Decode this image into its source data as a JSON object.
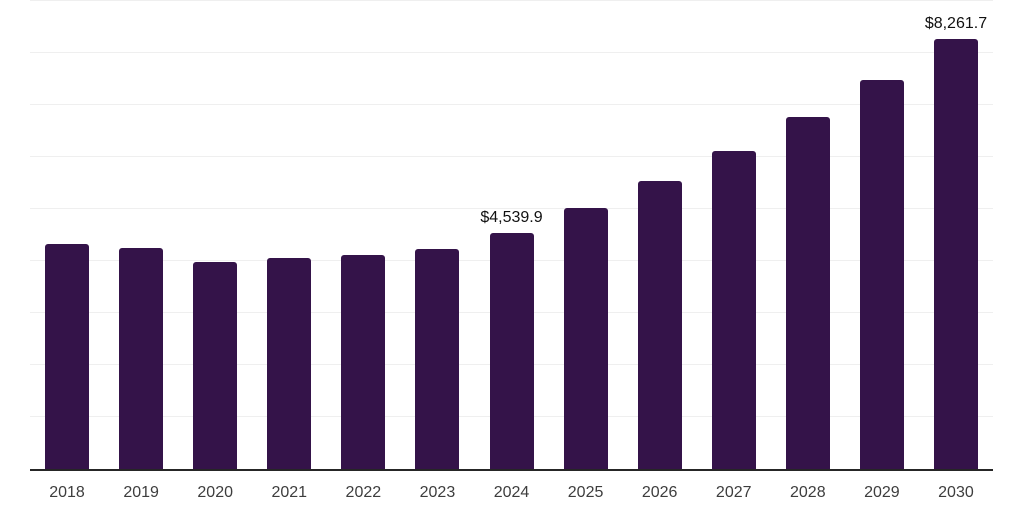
{
  "chart": {
    "colors": {
      "bar": "#341349",
      "gridline": "#efefef",
      "axis": "#262626",
      "value_label": "#111111",
      "tick_label": "#3d3d3d",
      "background": "#ffffff"
    }
  },
  "chart_data": {
    "type": "bar",
    "title": "",
    "xlabel": "",
    "ylabel": "",
    "categories": [
      "2018",
      "2019",
      "2020",
      "2021",
      "2022",
      "2023",
      "2024",
      "2025",
      "2026",
      "2027",
      "2028",
      "2029",
      "2030"
    ],
    "values": [
      4320,
      4255,
      3975,
      4050,
      4115,
      4225,
      4539.9,
      5016,
      5541,
      6122,
      6764,
      7473,
      8261.7
    ],
    "bar_labels": [
      "",
      "",
      "",
      "",
      "",
      "",
      "$4,539.9",
      "",
      "",
      "",
      "",
      "",
      "$8,261.7"
    ],
    "ylim": [
      0,
      9000
    ],
    "gridline_step": 1000,
    "grid": "horizontal",
    "legend": "none",
    "y_tick_labels_visible": false
  }
}
